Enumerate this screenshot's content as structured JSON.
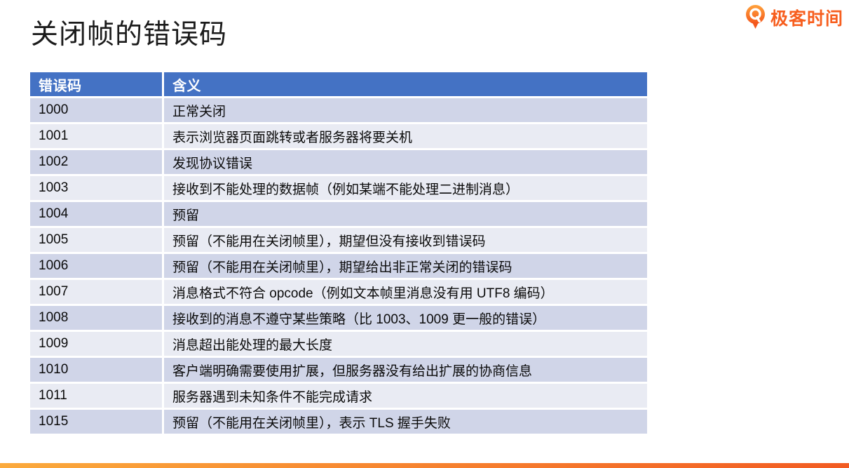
{
  "page": {
    "title": "关闭帧的错误码",
    "brand": {
      "name": "极客时间",
      "color": "#F75E1E",
      "icon": "geektime-pin-icon"
    },
    "accent_bar": {
      "from": "#FBAA3C",
      "to": "#F25B22"
    }
  },
  "table": {
    "headers": [
      "错误码",
      "含义"
    ],
    "header_bg": "#4472C4",
    "header_text_color": "#FFFFFF",
    "row_bg_odd": "#D0D5E8",
    "row_bg_even": "#E9EBF3",
    "rows": [
      [
        "1000",
        "正常关闭"
      ],
      [
        "1001",
        "表示浏览器页面跳转或者服务器将要关机"
      ],
      [
        "1002",
        "发现协议错误"
      ],
      [
        "1003",
        "接收到不能处理的数据帧（例如某端不能处理二进制消息）"
      ],
      [
        "1004",
        "预留"
      ],
      [
        "1005",
        "预留（不能用在关闭帧里），期望但没有接收到错误码"
      ],
      [
        "1006",
        "预留（不能用在关闭帧里），期望给出非正常关闭的错误码"
      ],
      [
        "1007",
        "消息格式不符合 opcode（例如文本帧里消息没有用 UTF8 编码）"
      ],
      [
        "1008",
        "接收到的消息不遵守某些策略（比 1003、1009 更一般的错误）"
      ],
      [
        "1009",
        "消息超出能处理的最大长度"
      ],
      [
        "1010",
        "客户端明确需要使用扩展，但服务器没有给出扩展的协商信息"
      ],
      [
        "1011",
        "服务器遇到未知条件不能完成请求"
      ],
      [
        "1015",
        "预留（不能用在关闭帧里），表示 TLS 握手失败"
      ]
    ]
  }
}
